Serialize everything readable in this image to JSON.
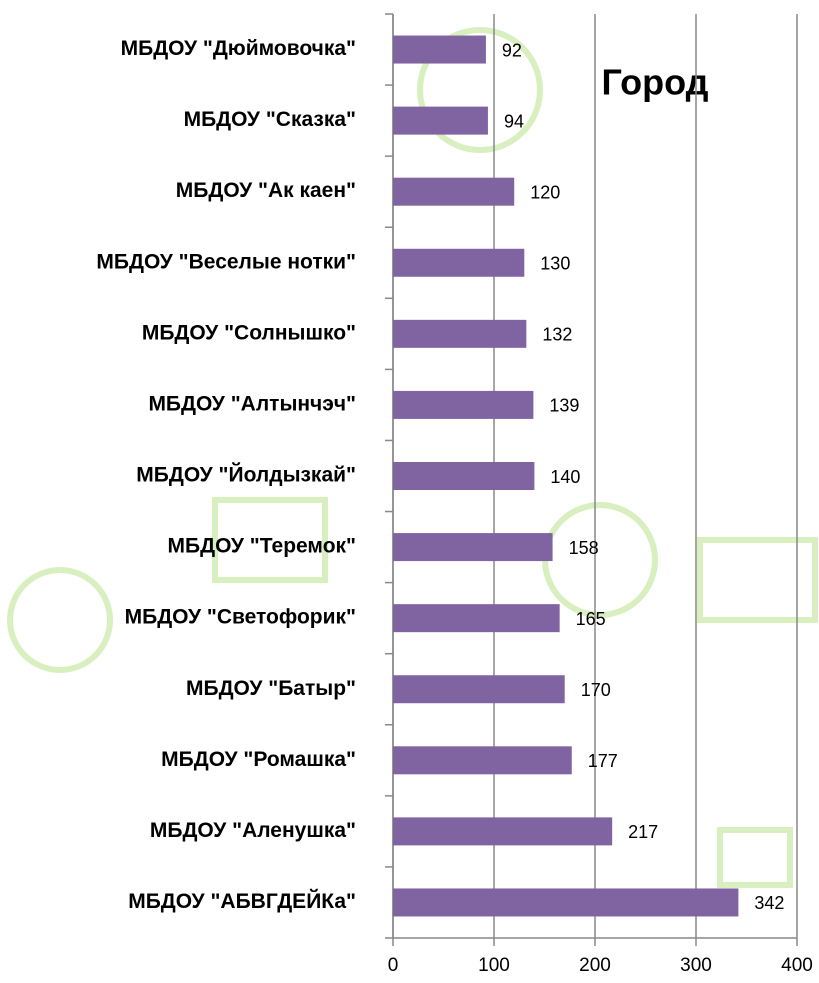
{
  "chart_data": {
    "type": "hbar",
    "title": "Город",
    "categories": [
      "МБДОУ \"Дюймовочка\"",
      "МБДОУ \"Сказка\"",
      "МБДОУ \"Ак каен\"",
      "МБДОУ \"Веселые нотки\"",
      "МБДОУ \"Солнышко\"",
      "МБДОУ \"Алтынчэч\"",
      "МБДОУ \"Йолдызкай\"",
      "МБДОУ \"Теремок\"",
      "МБДОУ \"Светофорик\"",
      "МБДОУ \"Батыр\"",
      "МБДОУ \"Ромашка\"",
      "МБДОУ \"Аленушка\"",
      "МБДОУ \"АБВГДЕЙКа\""
    ],
    "values": [
      92,
      94,
      120,
      130,
      132,
      139,
      140,
      158,
      165,
      170,
      177,
      217,
      342
    ],
    "color": "#8064a2",
    "xlim": [
      0,
      400
    ],
    "xticks": [
      0,
      100,
      200,
      300,
      400
    ],
    "grid": true
  }
}
